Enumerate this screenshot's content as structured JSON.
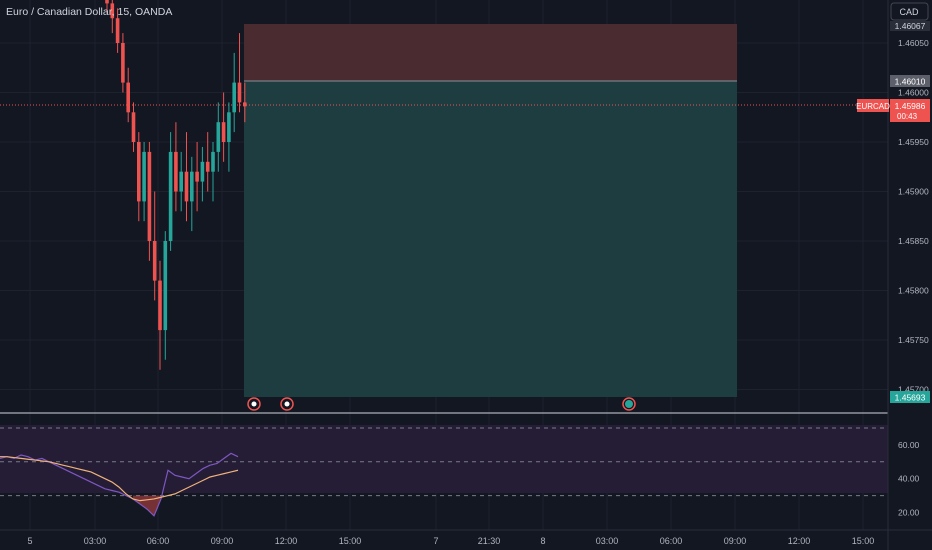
{
  "symbol_title": "Euro / Canadian Dollar, 15, OANDA",
  "currency_button": "CAD",
  "price_scale": {
    "ticks": [
      "1.46050",
      "1.46000",
      "1.45950",
      "1.45900",
      "1.45850",
      "1.45800",
      "1.45750",
      "1.45700"
    ],
    "top_label": "1.46067",
    "entry_label": "1.46010",
    "current_symbol": "EURCAD",
    "current_price": "1.45986",
    "countdown": "00:43",
    "target_label": "1.45693"
  },
  "oscillator": {
    "ticks": [
      "60.00",
      "40.00",
      "20.00"
    ]
  },
  "time_axis": {
    "labels": [
      "5",
      "03:00",
      "06:00",
      "09:00",
      "12:00",
      "15:00",
      "7",
      "21:30",
      "8",
      "03:00",
      "06:00",
      "09:00",
      "12:00",
      "15:00"
    ]
  },
  "colors": {
    "background": "#131722",
    "up": "#26a69a",
    "down": "#ef5350",
    "stop_zone": "#4a2b30",
    "target_zone": "#1d3d40",
    "oscillator_line": "#f0b27a",
    "oscillator_bg": "#241d35"
  },
  "chart_data": [
    {
      "type": "candlestick",
      "title": "Euro / Canadian Dollar, 15, OANDA",
      "ylim": [
        1.4569,
        1.4607
      ],
      "ohlc": [
        [
          1.4611,
          1.4612,
          1.4608,
          1.4609
        ],
        [
          1.4609,
          1.461,
          1.4606,
          1.46075
        ],
        [
          1.46075,
          1.46085,
          1.4604,
          1.4605
        ],
        [
          1.4605,
          1.4606,
          1.46,
          1.4601
        ],
        [
          1.4601,
          1.46025,
          1.4597,
          1.4598
        ],
        [
          1.4598,
          1.4599,
          1.4594,
          1.4595
        ],
        [
          1.4595,
          1.4596,
          1.4587,
          1.4589
        ],
        [
          1.4589,
          1.4595,
          1.4587,
          1.4594
        ],
        [
          1.4594,
          1.4595,
          1.4583,
          1.4585
        ],
        [
          1.4585,
          1.459,
          1.4579,
          1.4581
        ],
        [
          1.4581,
          1.4583,
          1.4572,
          1.4576
        ],
        [
          1.4576,
          1.4586,
          1.4573,
          1.4585
        ],
        [
          1.4585,
          1.4596,
          1.4584,
          1.4594
        ],
        [
          1.4594,
          1.4597,
          1.4588,
          1.459
        ],
        [
          1.459,
          1.4594,
          1.4588,
          1.4592
        ],
        [
          1.4592,
          1.4596,
          1.4587,
          1.4589
        ],
        [
          1.4589,
          1.45935,
          1.4586,
          1.4592
        ],
        [
          1.4592,
          1.4595,
          1.4588,
          1.4591
        ],
        [
          1.4591,
          1.45945,
          1.4589,
          1.4593
        ],
        [
          1.4593,
          1.4596,
          1.459,
          1.4592
        ],
        [
          1.4592,
          1.4595,
          1.4589,
          1.4594
        ],
        [
          1.4594,
          1.4599,
          1.4592,
          1.4597
        ],
        [
          1.4597,
          1.46,
          1.4593,
          1.4595
        ],
        [
          1.4595,
          1.4599,
          1.4592,
          1.4598
        ],
        [
          1.4598,
          1.4604,
          1.4596,
          1.4601
        ],
        [
          1.4601,
          1.4606,
          1.4598,
          1.4599
        ],
        [
          1.4599,
          1.4601,
          1.4597,
          1.45986
        ]
      ]
    },
    {
      "type": "line",
      "series": [
        {
          "values": [
            52,
            53,
            52,
            54,
            53,
            51,
            52,
            50,
            48,
            46,
            44,
            42,
            40,
            38,
            36,
            34,
            33,
            32,
            30,
            28,
            25,
            22,
            18,
            28,
            45,
            42,
            41,
            40,
            43,
            46,
            48,
            49,
            52,
            55,
            53
          ]
        },
        {
          "values": [
            53,
            53,
            52.5,
            52,
            51.5,
            51,
            50.5,
            50,
            49,
            48,
            47,
            46,
            45,
            44,
            42,
            40,
            38,
            35,
            31,
            28,
            27,
            27.5,
            28,
            29,
            30,
            31,
            33,
            35,
            37,
            39,
            41,
            42,
            43,
            44,
            45
          ]
        }
      ],
      "ylim": [
        12,
        73
      ],
      "levels": [
        70,
        50,
        30
      ]
    }
  ]
}
